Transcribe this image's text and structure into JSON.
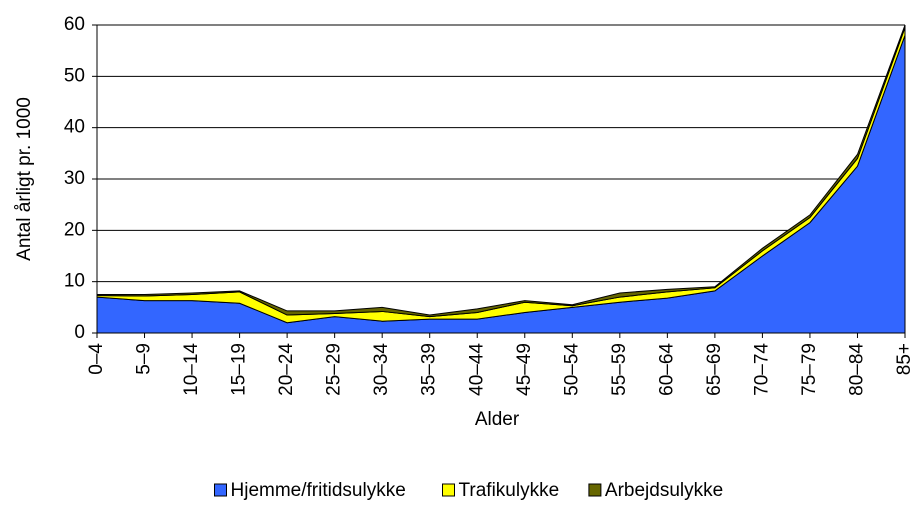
{
  "chart_data": {
    "type": "stacked_area",
    "xlabel": "Alder",
    "ylabel": "Antal årligt pr. 1000",
    "categories": [
      "0–4",
      "5–9",
      "10–14",
      "15–19",
      "20–24",
      "25–29",
      "30–34",
      "35–39",
      "40–44",
      "45–49",
      "50–54",
      "55–59",
      "60–64",
      "65–69",
      "70–74",
      "75–79",
      "80–84",
      "85+"
    ],
    "series": [
      {
        "name": "Hjemme/fritidsulykke",
        "color": "#3366ff",
        "values": [
          7,
          6.3,
          6.3,
          5.8,
          2,
          3.2,
          2.3,
          2.7,
          2.7,
          4,
          5,
          6,
          6.8,
          8.2,
          15,
          21.5,
          32.5,
          58
        ]
      },
      {
        "name": "Trafikulykke",
        "color": "#ffff00",
        "values": [
          0.3,
          0.9,
          1.2,
          2.2,
          1.5,
          0.6,
          1.9,
          0.5,
          1.3,
          2,
          0.3,
          1,
          1.2,
          0.6,
          1,
          1,
          1.5,
          1.5
        ]
      },
      {
        "name": "Arbejdsulykke",
        "color": "#666600",
        "values": [
          0.2,
          0.3,
          0.3,
          0.2,
          0.8,
          0.5,
          0.8,
          0.3,
          0.7,
          0.3,
          0.2,
          0.8,
          0.5,
          0.2,
          0.5,
          0.5,
          0.8,
          0.5
        ]
      }
    ],
    "ylim": [
      0,
      60
    ],
    "yticks": [
      0,
      10,
      20,
      30,
      40,
      50,
      60
    ],
    "grid": true
  }
}
